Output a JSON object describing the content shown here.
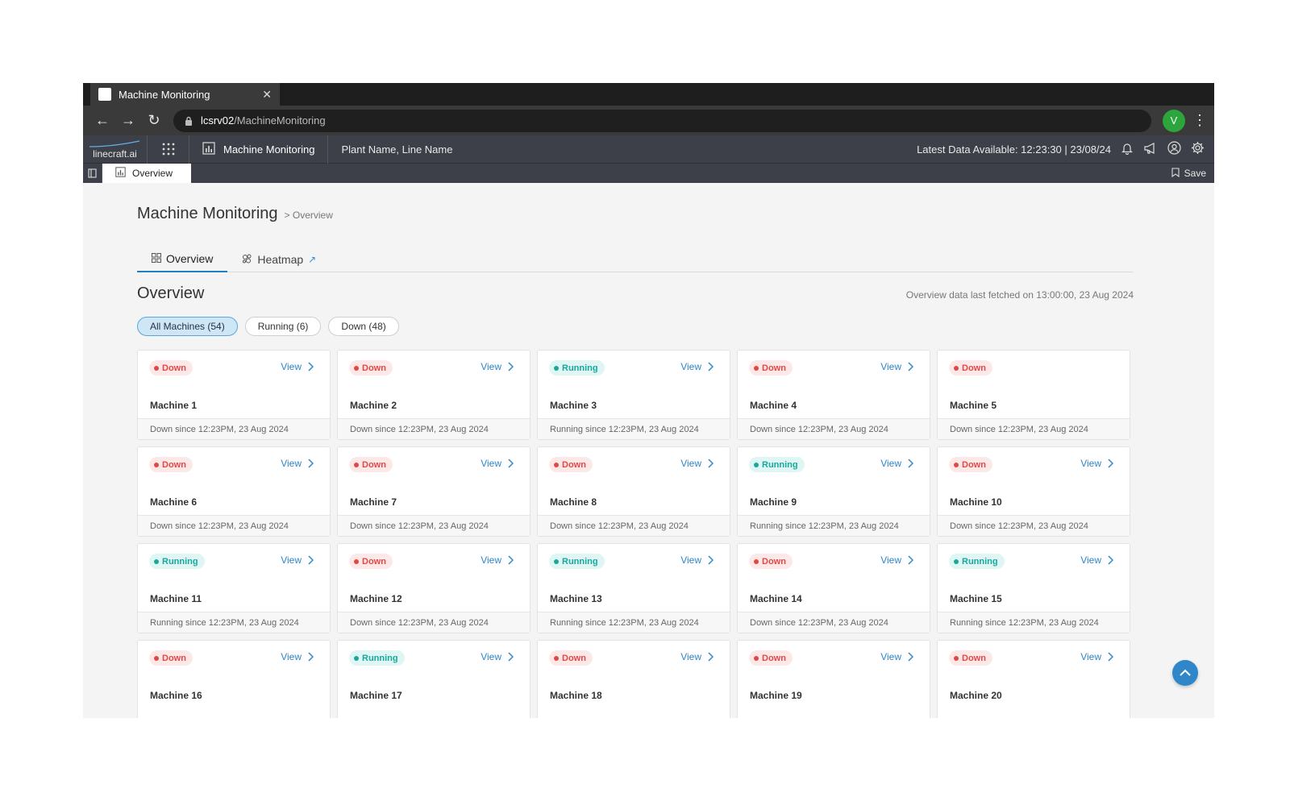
{
  "browser": {
    "tab_title": "Machine Monitoring",
    "url_host": "lcsrv02",
    "url_path": "/MachineMonitoring",
    "profile_initial": "V"
  },
  "appbar": {
    "logo": "linecraft.ai",
    "app_name": "Machine Monitoring",
    "breadcrumb": "Plant Name, Line Name",
    "latest_data": "Latest Data Available: 12:23:30 | 23/08/24"
  },
  "subbar": {
    "tab_label": "Overview",
    "save_label": "Save"
  },
  "page": {
    "title": "Machine Monitoring",
    "crumb": "> Overview",
    "tabs": [
      {
        "label": "Overview"
      },
      {
        "label": "Heatmap"
      }
    ],
    "section_title": "Overview",
    "fetched": "Overview data last fetched on 13:00:00, 23 Aug 2024",
    "filters": [
      {
        "label": "All Machines (54)"
      },
      {
        "label": "Running (6)"
      },
      {
        "label": "Down (48)"
      }
    ]
  },
  "view_label": "View",
  "colors": {
    "down": "#e04848",
    "running": "#1aa79a",
    "accent": "#2f86c8"
  },
  "machines": [
    {
      "name": "Machine 1",
      "status": "Down",
      "since": "Down since 12:23PM, 23 Aug 2024",
      "view": true
    },
    {
      "name": "Machine 2",
      "status": "Down",
      "since": "Down since 12:23PM, 23 Aug 2024",
      "view": true
    },
    {
      "name": "Machine 3",
      "status": "Running",
      "since": "Running since 12:23PM, 23 Aug 2024",
      "view": true
    },
    {
      "name": "Machine 4",
      "status": "Down",
      "since": "Down since 12:23PM, 23 Aug 2024",
      "view": true
    },
    {
      "name": "Machine 5",
      "status": "Down",
      "since": "Down since 12:23PM, 23 Aug 2024",
      "view": false
    },
    {
      "name": "Machine 6",
      "status": "Down",
      "since": "Down since 12:23PM, 23 Aug 2024",
      "view": true
    },
    {
      "name": "Machine 7",
      "status": "Down",
      "since": "Down since 12:23PM, 23 Aug 2024",
      "view": true
    },
    {
      "name": "Machine 8",
      "status": "Down",
      "since": "Down since 12:23PM, 23 Aug 2024",
      "view": true
    },
    {
      "name": "Machine 9",
      "status": "Running",
      "since": "Running since 12:23PM, 23 Aug 2024",
      "view": true
    },
    {
      "name": "Machine 10",
      "status": "Down",
      "since": "Down since 12:23PM, 23 Aug 2024",
      "view": true
    },
    {
      "name": "Machine 11",
      "status": "Running",
      "since": "Running since 12:23PM, 23 Aug 2024",
      "view": true
    },
    {
      "name": "Machine 12",
      "status": "Down",
      "since": "Down since 12:23PM, 23 Aug 2024",
      "view": true
    },
    {
      "name": "Machine 13",
      "status": "Running",
      "since": "Running since 12:23PM, 23 Aug 2024",
      "view": true
    },
    {
      "name": "Machine 14",
      "status": "Down",
      "since": "Down since 12:23PM, 23 Aug 2024",
      "view": true
    },
    {
      "name": "Machine 15",
      "status": "Running",
      "since": "Running since 12:23PM, 23 Aug 2024",
      "view": true
    },
    {
      "name": "Machine 16",
      "status": "Down",
      "since": "",
      "view": true
    },
    {
      "name": "Machine 17",
      "status": "Running",
      "since": "",
      "view": true
    },
    {
      "name": "Machine 18",
      "status": "Down",
      "since": "",
      "view": true
    },
    {
      "name": "Machine 19",
      "status": "Down",
      "since": "",
      "view": true
    },
    {
      "name": "Machine 20",
      "status": "Down",
      "since": "",
      "view": true
    }
  ]
}
